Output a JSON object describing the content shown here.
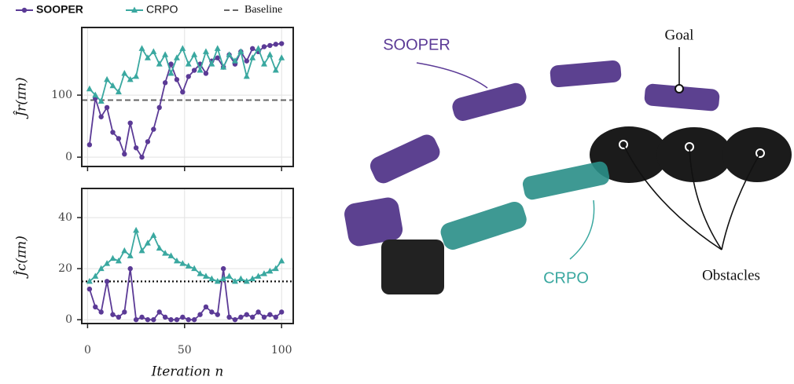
{
  "chart_data": [
    {
      "type": "line",
      "ylabel": "Ĵr(πn)",
      "xlim": [
        -3,
        106
      ],
      "ylim": [
        -15,
        209
      ],
      "yticks": [
        0,
        100
      ],
      "grid": true,
      "series": [
        {
          "name": "SOOPER",
          "color": "#5b3a96",
          "marker": "circle",
          "x": [
            1,
            4,
            7,
            10,
            13,
            16,
            19,
            22,
            25,
            28,
            31,
            34,
            37,
            40,
            43,
            46,
            49,
            52,
            55,
            58,
            61,
            64,
            67,
            70,
            73,
            76,
            79,
            82,
            85,
            88,
            91,
            94,
            97,
            100
          ],
          "values": [
            20,
            95,
            65,
            80,
            40,
            30,
            5,
            55,
            15,
            0,
            25,
            45,
            80,
            120,
            150,
            125,
            105,
            130,
            140,
            150,
            135,
            155,
            160,
            145,
            165,
            150,
            170,
            155,
            175,
            170,
            178,
            180,
            182,
            183
          ]
        },
        {
          "name": "CRPO",
          "color": "#3aa8a0",
          "marker": "triangle",
          "x": [
            1,
            4,
            7,
            10,
            13,
            16,
            19,
            22,
            25,
            28,
            31,
            34,
            37,
            40,
            43,
            46,
            49,
            52,
            55,
            58,
            61,
            64,
            67,
            70,
            73,
            76,
            79,
            82,
            85,
            88,
            91,
            94,
            97,
            100
          ],
          "values": [
            110,
            100,
            90,
            125,
            115,
            105,
            135,
            125,
            130,
            175,
            160,
            170,
            150,
            165,
            135,
            160,
            175,
            150,
            165,
            140,
            170,
            150,
            175,
            145,
            165,
            155,
            170,
            130,
            160,
            175,
            150,
            165,
            140,
            160
          ]
        }
      ],
      "baseline": {
        "name": "Baseline",
        "value": 92,
        "color": "#666666"
      }
    },
    {
      "type": "line",
      "ylabel": "Ĵc(πn)",
      "xlabel": "Iteration n",
      "xlim": [
        -3,
        106
      ],
      "ylim": [
        -1.5,
        51.4
      ],
      "xticks": [
        0,
        50,
        100
      ],
      "yticks": [
        0,
        20,
        40
      ],
      "grid": true,
      "series": [
        {
          "color": "#5b3a96",
          "marker": "circle",
          "x": [
            1,
            4,
            7,
            10,
            13,
            16,
            19,
            22,
            25,
            28,
            31,
            34,
            37,
            40,
            43,
            46,
            49,
            52,
            55,
            58,
            61,
            64,
            67,
            70,
            73,
            76,
            79,
            82,
            85,
            88,
            91,
            94,
            97,
            100
          ],
          "values": [
            12,
            5,
            3,
            15,
            2,
            1,
            3,
            20,
            0,
            1,
            0,
            0,
            3,
            1,
            0,
            0,
            1,
            0,
            0,
            2,
            5,
            3,
            2,
            20,
            1,
            0,
            1,
            2,
            1,
            3,
            1,
            2,
            1,
            3
          ]
        },
        {
          "color": "#3aa8a0",
          "marker": "triangle",
          "x": [
            1,
            4,
            7,
            10,
            13,
            16,
            19,
            22,
            25,
            28,
            31,
            34,
            37,
            40,
            43,
            46,
            49,
            52,
            55,
            58,
            61,
            64,
            67,
            70,
            73,
            76,
            79,
            82,
            85,
            88,
            91,
            94,
            97,
            100
          ],
          "values": [
            15,
            17,
            20,
            22,
            24,
            23,
            27,
            25,
            35,
            27,
            30,
            33,
            28,
            26,
            25,
            23,
            22,
            21,
            20,
            18,
            17,
            16,
            15,
            16,
            17,
            15,
            16,
            15,
            16,
            17,
            18,
            19,
            20,
            23
          ]
        }
      ],
      "threshold": {
        "value": 15,
        "color": "#111111"
      }
    }
  ],
  "illustration": {
    "sooper": "SOOPER",
    "crpo": "CRPO",
    "goal": "Goal",
    "obstacles": "Obstacles"
  }
}
